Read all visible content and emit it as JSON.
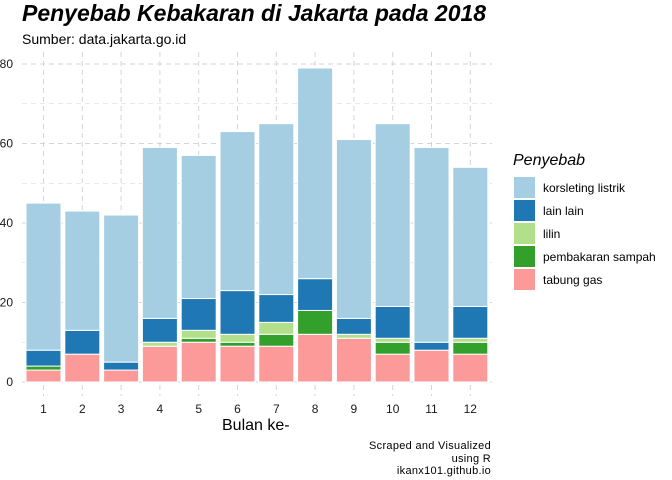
{
  "chart_data": {
    "type": "bar",
    "stacked": true,
    "title": "Penyebab Kebakaran di Jakarta pada 2018",
    "subtitle": "Sumber: data.jakarta.go.id",
    "xlabel": "Bulan ke-",
    "ylabel": "",
    "categories": [
      "1",
      "2",
      "3",
      "4",
      "5",
      "6",
      "7",
      "8",
      "9",
      "10",
      "11",
      "12"
    ],
    "ylim": [
      0,
      80
    ],
    "yticks": [
      "0",
      "20",
      "40",
      "60",
      "80"
    ],
    "grid": true,
    "legend_title": "Penyebab",
    "legend_position": "right",
    "series": [
      {
        "name": "tabung gas",
        "color": "#fb9a99",
        "values": [
          3,
          7,
          3,
          9,
          10,
          9,
          9,
          12,
          11,
          7,
          8,
          7
        ]
      },
      {
        "name": "pembakaran sampah",
        "color": "#33a02c",
        "values": [
          1,
          0,
          0,
          0,
          1,
          1,
          3,
          6,
          0,
          3,
          0,
          3
        ]
      },
      {
        "name": "lilin",
        "color": "#b2df8a",
        "values": [
          0,
          0,
          0,
          1,
          2,
          2,
          3,
          0,
          1,
          1,
          0,
          1
        ]
      },
      {
        "name": "lain lain",
        "color": "#1f78b4",
        "values": [
          4,
          6,
          2,
          6,
          8,
          11,
          7,
          8,
          4,
          8,
          2,
          8
        ]
      },
      {
        "name": "korsleting listrik",
        "color": "#a6cee3",
        "values": [
          37,
          30,
          37,
          43,
          36,
          40,
          43,
          53,
          45,
          46,
          49,
          35
        ]
      }
    ],
    "legend_order": [
      "korsleting listrik",
      "lain lain",
      "lilin",
      "pembakaran sampah",
      "tabung gas"
    ],
    "caption": [
      "Scraped and Visualized",
      "using R",
      "ikanx101.github.io"
    ]
  }
}
